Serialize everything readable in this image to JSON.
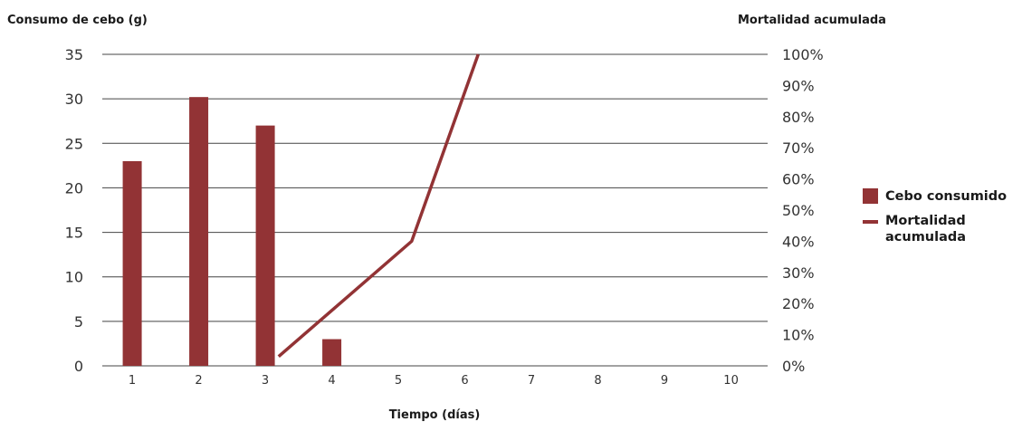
{
  "colors": {
    "bar": "#923335",
    "line": "#923335",
    "grid": "#444444"
  },
  "chart_data": {
    "type": "bar",
    "title": "",
    "ylabel": "Consumo de cebo (g)",
    "y2label": "Mortalidad acumulada",
    "xlabel": "Tiempo (días)",
    "categories": [
      "1",
      "2",
      "3",
      "4",
      "5",
      "6",
      "7",
      "8",
      "9",
      "10"
    ],
    "ylim": [
      0,
      35
    ],
    "yticks": [
      "0",
      "5",
      "10",
      "15",
      "20",
      "25",
      "30",
      "35"
    ],
    "y2lim": [
      0,
      100
    ],
    "y2ticks": [
      "0%",
      "10%",
      "20%",
      "30%",
      "40%",
      "50%",
      "60%",
      "70%",
      "80%",
      "90%",
      "100%"
    ],
    "grid": true,
    "legend_position": "right",
    "series": [
      {
        "name": "Cebo consumido",
        "type": "bar",
        "axis": "left",
        "values": [
          23,
          30.2,
          27,
          3,
          0,
          0,
          0,
          0,
          0,
          0
        ]
      },
      {
        "name": "Mortalidad acumulada",
        "type": "line",
        "axis": "right",
        "x": [
          3.2,
          5.2,
          6.2
        ],
        "values": [
          3,
          40,
          100
        ]
      }
    ]
  }
}
